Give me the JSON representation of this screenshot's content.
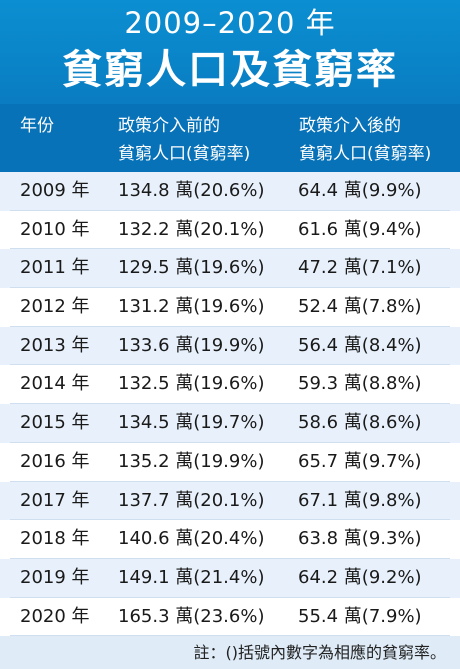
{
  "header": {
    "subtitle": "2009–2020 年",
    "title": "貧窮人口及貧窮率"
  },
  "table": {
    "columns": [
      "年份",
      "政策介入前的\n貧窮人口(貧窮率)",
      "政策介入後的\n貧窮人口(貧窮率)"
    ],
    "rows": [
      [
        "2009 年",
        "134.8 萬(20.6%)",
        "64.4 萬(9.9%)"
      ],
      [
        "2010 年",
        "132.2 萬(20.1%)",
        "61.6 萬(9.4%)"
      ],
      [
        "2011 年",
        "129.5 萬(19.6%)",
        "47.2 萬(7.1%)"
      ],
      [
        "2012 年",
        "131.2 萬(19.6%)",
        "52.4 萬(7.8%)"
      ],
      [
        "2013 年",
        "133.6 萬(19.9%)",
        "56.4 萬(8.4%)"
      ],
      [
        "2014 年",
        "132.5 萬(19.6%)",
        "59.3 萬(8.8%)"
      ],
      [
        "2015 年",
        "134.5 萬(19.7%)",
        "58.6 萬(8.6%)"
      ],
      [
        "2016 年",
        "135.2 萬(19.9%)",
        "65.7 萬(9.7%)"
      ],
      [
        "2017 年",
        "137.7 萬(20.1%)",
        "67.1 萬(9.8%)"
      ],
      [
        "2018 年",
        "140.6 萬(20.4%)",
        "63.8 萬(9.3%)"
      ],
      [
        "2019 年",
        "149.1 萬(21.4%)",
        "64.2 萬(9.2%)"
      ],
      [
        "2020 年",
        "165.3 萬(23.6%)",
        "55.4 萬(7.9%)"
      ]
    ]
  },
  "note": "註：()括號內數字為相應的貧窮率。",
  "colors": {
    "header_bg": "#0b8fd2",
    "thead_bg": "#0772b8",
    "row_alt_bg": "#e8f1fb",
    "note_bg": "#dfecf8"
  }
}
